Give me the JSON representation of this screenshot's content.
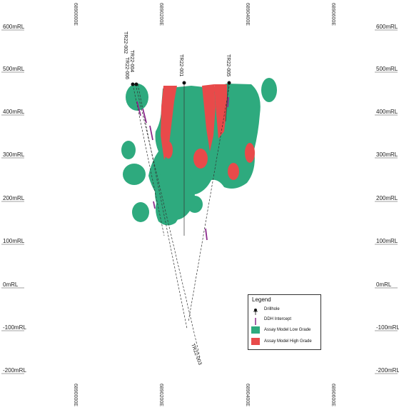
{
  "section": {
    "rl_labels": [
      "600mRL",
      "500mRL",
      "400mRL",
      "300mRL",
      "200mRL",
      "100mRL",
      "0mRL",
      "-100mRL",
      "-200mRL"
    ],
    "easting_labels": [
      "6890000E",
      "6890200E",
      "6890400E",
      "6890600E"
    ],
    "drillholes": [
      "TR22-002",
      "TR22-004",
      "TR22-006",
      "TR22-001",
      "TR22-003",
      "TR22-005"
    ]
  },
  "legend": {
    "title": "Legend",
    "items": [
      {
        "key": "drillhole",
        "label": "Drillhole"
      },
      {
        "key": "ddh_intercept",
        "label": "DDH Intercept",
        "color": "#8b2a8b"
      },
      {
        "key": "low_grade",
        "label": "Assay Model Low Grade",
        "color": "#2eaa7e"
      },
      {
        "key": "high_grade",
        "label": "Assay Model High Grade",
        "color": "#e84a4a"
      }
    ]
  },
  "colors": {
    "low_grade": "#2eaa7e",
    "high_grade": "#e84a4a",
    "intercept": "#8b2a8b",
    "trace": "#333333"
  }
}
